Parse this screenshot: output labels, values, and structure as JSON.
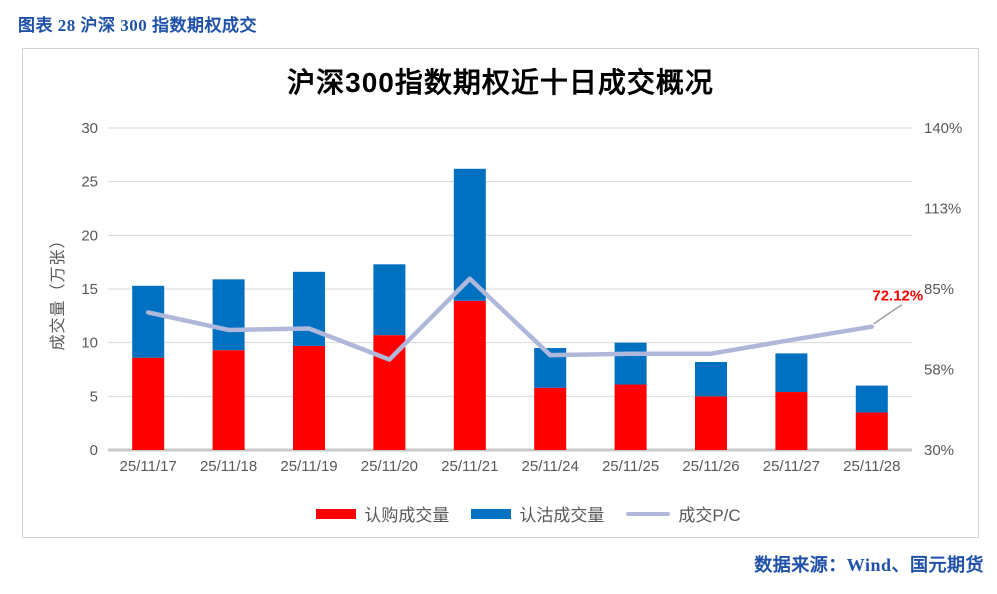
{
  "page": {
    "caption": "图表 28 沪深 300 指数期权成交",
    "source": "数据来源：Wind、国元期货",
    "accent_color": "#1F51A8"
  },
  "chart_data": {
    "type": "bar",
    "subtype": "stacked-bars-with-line",
    "title": "沪深300指数期权近十日成交概况",
    "categories": [
      "25/11/17",
      "25/11/18",
      "25/11/19",
      "25/11/20",
      "25/11/21",
      "25/11/24",
      "25/11/25",
      "25/11/26",
      "25/11/27",
      "25/11/28"
    ],
    "series": [
      {
        "name": "认购成交量",
        "type": "bar",
        "stack": "volume",
        "axis": "left",
        "color": "#FF0000",
        "values": [
          8.6,
          9.3,
          9.7,
          10.7,
          13.9,
          5.8,
          6.1,
          5.0,
          5.4,
          3.5
        ]
      },
      {
        "name": "认沽成交量",
        "type": "bar",
        "stack": "volume",
        "axis": "left",
        "color": "#0070C0",
        "values": [
          6.7,
          6.6,
          6.9,
          6.6,
          12.3,
          3.7,
          3.9,
          3.2,
          3.6,
          2.5
        ]
      },
      {
        "name": "成交P/C",
        "type": "line",
        "axis": "right",
        "color": "#AFB8DB",
        "values": [
          77.0,
          71.0,
          71.5,
          60.9,
          88.5,
          62.4,
          62.9,
          62.9,
          67.6,
          72.12
        ]
      }
    ],
    "left_axis": {
      "title": "成交量（万张）",
      "min": 0,
      "max": 30,
      "ticks": [
        0,
        5,
        10,
        15,
        20,
        25,
        30
      ]
    },
    "right_axis": {
      "min": 30,
      "max": 140,
      "tick_labels": [
        "30%",
        "58%",
        "85%",
        "113%",
        "140%"
      ]
    },
    "last_point_label": {
      "text": "72.12%",
      "color": "#FF0000"
    },
    "grid": true,
    "legend_position": "bottom"
  }
}
